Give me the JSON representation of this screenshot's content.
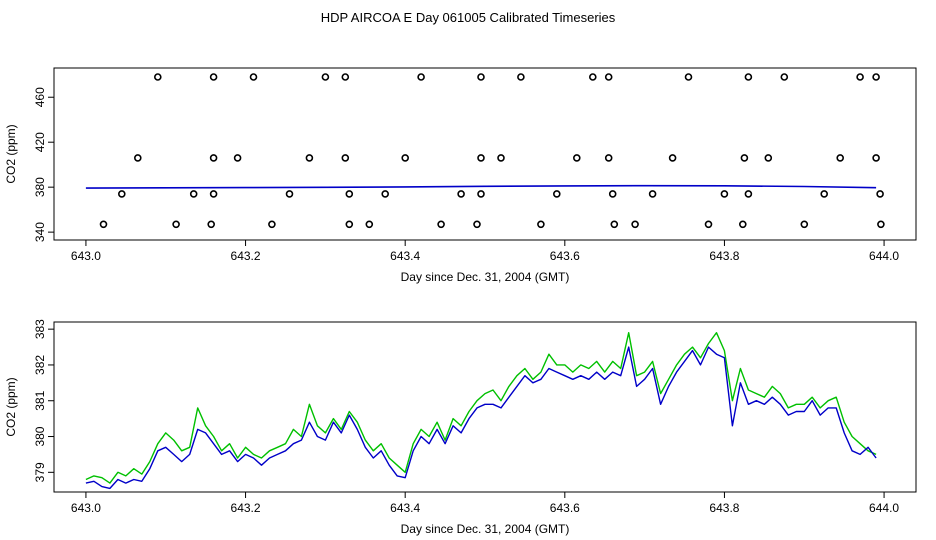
{
  "page": {
    "title": "HDP AIRCOA E  Day 061005  Calibrated Timeseries"
  },
  "colors": {
    "green": "#00c000",
    "blue": "#0000c8",
    "axis": "#000000",
    "points": "#000000"
  },
  "chart_data": [
    {
      "type": "scatter",
      "title": "",
      "xlabel": "Day since Dec. 31, 2004 (GMT)",
      "ylabel": "CO2 (ppm)",
      "xlim": [
        642.96,
        644.04
      ],
      "ylim": [
        333,
        486
      ],
      "x_ticks": [
        643.0,
        643.2,
        643.4,
        643.6,
        643.8,
        644.0
      ],
      "x_tick_labels": [
        "643.0",
        "643.2",
        "643.4",
        "643.6",
        "643.8",
        "644.0"
      ],
      "y_ticks": [
        340,
        380,
        420,
        460
      ],
      "y_tick_labels": [
        "340",
        "380",
        "420",
        "460"
      ],
      "points": [
        {
          "x": 643.09,
          "y": 478
        },
        {
          "x": 643.16,
          "y": 478
        },
        {
          "x": 643.21,
          "y": 478
        },
        {
          "x": 643.3,
          "y": 478
        },
        {
          "x": 643.325,
          "y": 478
        },
        {
          "x": 643.42,
          "y": 478
        },
        {
          "x": 643.495,
          "y": 478
        },
        {
          "x": 643.545,
          "y": 478
        },
        {
          "x": 643.635,
          "y": 478
        },
        {
          "x": 643.655,
          "y": 478
        },
        {
          "x": 643.755,
          "y": 478
        },
        {
          "x": 643.83,
          "y": 478
        },
        {
          "x": 643.875,
          "y": 478
        },
        {
          "x": 643.97,
          "y": 478
        },
        {
          "x": 643.99,
          "y": 478
        },
        {
          "x": 643.065,
          "y": 406
        },
        {
          "x": 643.16,
          "y": 406
        },
        {
          "x": 643.19,
          "y": 406
        },
        {
          "x": 643.28,
          "y": 406
        },
        {
          "x": 643.325,
          "y": 406
        },
        {
          "x": 643.4,
          "y": 406
        },
        {
          "x": 643.495,
          "y": 406
        },
        {
          "x": 643.52,
          "y": 406
        },
        {
          "x": 643.615,
          "y": 406
        },
        {
          "x": 643.655,
          "y": 406
        },
        {
          "x": 643.735,
          "y": 406
        },
        {
          "x": 643.825,
          "y": 406
        },
        {
          "x": 643.855,
          "y": 406
        },
        {
          "x": 643.945,
          "y": 406
        },
        {
          "x": 643.99,
          "y": 406
        },
        {
          "x": 643.045,
          "y": 374
        },
        {
          "x": 643.135,
          "y": 374
        },
        {
          "x": 643.16,
          "y": 374
        },
        {
          "x": 643.255,
          "y": 374
        },
        {
          "x": 643.33,
          "y": 374
        },
        {
          "x": 643.375,
          "y": 374
        },
        {
          "x": 643.47,
          "y": 374
        },
        {
          "x": 643.495,
          "y": 374
        },
        {
          "x": 643.59,
          "y": 374
        },
        {
          "x": 643.66,
          "y": 374
        },
        {
          "x": 643.71,
          "y": 374
        },
        {
          "x": 643.8,
          "y": 374
        },
        {
          "x": 643.83,
          "y": 374
        },
        {
          "x": 643.925,
          "y": 374
        },
        {
          "x": 643.995,
          "y": 374
        },
        {
          "x": 643.022,
          "y": 347
        },
        {
          "x": 643.113,
          "y": 347
        },
        {
          "x": 643.157,
          "y": 347
        },
        {
          "x": 643.233,
          "y": 347
        },
        {
          "x": 643.33,
          "y": 347
        },
        {
          "x": 643.355,
          "y": 347
        },
        {
          "x": 643.445,
          "y": 347
        },
        {
          "x": 643.49,
          "y": 347
        },
        {
          "x": 643.57,
          "y": 347
        },
        {
          "x": 643.662,
          "y": 347
        },
        {
          "x": 643.688,
          "y": 347
        },
        {
          "x": 643.78,
          "y": 347
        },
        {
          "x": 643.823,
          "y": 347
        },
        {
          "x": 643.9,
          "y": 347
        },
        {
          "x": 643.996,
          "y": 347
        }
      ],
      "series": [
        {
          "x": [
            643.0,
            643.1,
            643.2,
            643.3,
            643.4,
            643.5,
            643.6,
            643.7,
            643.8,
            643.9,
            643.99
          ],
          "values": [
            379.2,
            379.4,
            379.6,
            379.9,
            380.2,
            380.8,
            381.1,
            381.3,
            381.2,
            380.6,
            379.5
          ]
        }
      ]
    },
    {
      "type": "line",
      "title": "",
      "xlabel": "Day since Dec. 31, 2004 (GMT)",
      "ylabel": "CO2 (ppm)",
      "xlim": [
        642.96,
        644.04
      ],
      "ylim": [
        378.45,
        383.2
      ],
      "x_ticks": [
        643.0,
        643.2,
        643.4,
        643.6,
        643.8,
        644.0
      ],
      "x_tick_labels": [
        "643.0",
        "643.2",
        "643.4",
        "643.6",
        "643.8",
        "644.0"
      ],
      "y_ticks": [
        379,
        380,
        381,
        382,
        383
      ],
      "y_tick_labels": [
        "379",
        "380",
        "381",
        "382",
        "383"
      ],
      "x": [
        643.0,
        643.01,
        643.02,
        643.03,
        643.04,
        643.05,
        643.06,
        643.07,
        643.08,
        643.09,
        643.1,
        643.11,
        643.12,
        643.13,
        643.14,
        643.15,
        643.16,
        643.17,
        643.18,
        643.19,
        643.2,
        643.21,
        643.22,
        643.23,
        643.24,
        643.25,
        643.26,
        643.27,
        643.28,
        643.29,
        643.3,
        643.31,
        643.32,
        643.33,
        643.34,
        643.35,
        643.36,
        643.37,
        643.38,
        643.39,
        643.4,
        643.41,
        643.42,
        643.43,
        643.44,
        643.45,
        643.46,
        643.47,
        643.48,
        643.49,
        643.5,
        643.51,
        643.52,
        643.53,
        643.54,
        643.55,
        643.56,
        643.57,
        643.58,
        643.59,
        643.6,
        643.61,
        643.62,
        643.63,
        643.64,
        643.65,
        643.66,
        643.67,
        643.68,
        643.69,
        643.7,
        643.71,
        643.72,
        643.73,
        643.74,
        643.75,
        643.76,
        643.77,
        643.78,
        643.79,
        643.8,
        643.81,
        643.82,
        643.83,
        643.84,
        643.85,
        643.86,
        643.87,
        643.88,
        643.89,
        643.9,
        643.91,
        643.92,
        643.93,
        643.94,
        643.95,
        643.96,
        643.97,
        643.98,
        643.99
      ],
      "series": [
        {
          "color": "green",
          "values": [
            378.8,
            378.9,
            378.85,
            378.7,
            379.0,
            378.9,
            379.1,
            378.95,
            379.3,
            379.8,
            380.1,
            379.9,
            379.6,
            379.7,
            380.8,
            380.3,
            380.0,
            379.6,
            379.8,
            379.4,
            379.7,
            379.5,
            379.4,
            379.6,
            379.7,
            379.8,
            380.2,
            380.0,
            380.9,
            380.3,
            380.1,
            380.5,
            380.2,
            380.7,
            380.4,
            379.9,
            379.6,
            379.8,
            379.4,
            379.2,
            379.0,
            379.8,
            380.2,
            380.0,
            380.4,
            379.9,
            380.5,
            380.3,
            380.7,
            381.0,
            381.2,
            381.3,
            381.0,
            381.4,
            381.7,
            381.9,
            381.6,
            381.8,
            382.3,
            382.0,
            382.0,
            381.8,
            382.0,
            381.9,
            382.1,
            381.8,
            382.1,
            381.9,
            382.9,
            381.7,
            381.8,
            382.1,
            381.2,
            381.6,
            382.0,
            382.3,
            382.5,
            382.2,
            382.6,
            382.9,
            382.4,
            381.0,
            381.9,
            381.3,
            381.2,
            381.1,
            381.4,
            381.2,
            380.8,
            380.9,
            380.9,
            381.1,
            380.8,
            381.0,
            381.1,
            380.4,
            380.0,
            379.8,
            379.6,
            379.5
          ]
        },
        {
          "color": "blue",
          "values": [
            378.7,
            378.75,
            378.6,
            378.55,
            378.8,
            378.7,
            378.8,
            378.75,
            379.1,
            379.6,
            379.7,
            379.5,
            379.3,
            379.5,
            380.2,
            380.1,
            379.8,
            379.5,
            379.6,
            379.3,
            379.5,
            379.4,
            379.2,
            379.4,
            379.5,
            379.6,
            379.8,
            379.9,
            380.4,
            380.0,
            379.9,
            380.4,
            380.1,
            380.6,
            380.2,
            379.7,
            379.4,
            379.6,
            379.2,
            378.9,
            378.85,
            379.6,
            380.0,
            379.8,
            380.2,
            379.8,
            380.3,
            380.1,
            380.5,
            380.8,
            380.9,
            380.9,
            380.8,
            381.1,
            381.4,
            381.7,
            381.5,
            381.6,
            381.9,
            381.8,
            381.7,
            381.6,
            381.7,
            381.6,
            381.8,
            381.6,
            381.8,
            381.7,
            382.5,
            381.4,
            381.6,
            381.9,
            380.9,
            381.4,
            381.8,
            382.1,
            382.4,
            382.0,
            382.5,
            382.3,
            382.2,
            380.3,
            381.5,
            380.9,
            381.0,
            380.9,
            381.1,
            380.9,
            380.6,
            380.7,
            380.7,
            381.0,
            380.6,
            380.8,
            380.8,
            380.1,
            379.6,
            379.5,
            379.7,
            379.4
          ]
        }
      ]
    }
  ]
}
